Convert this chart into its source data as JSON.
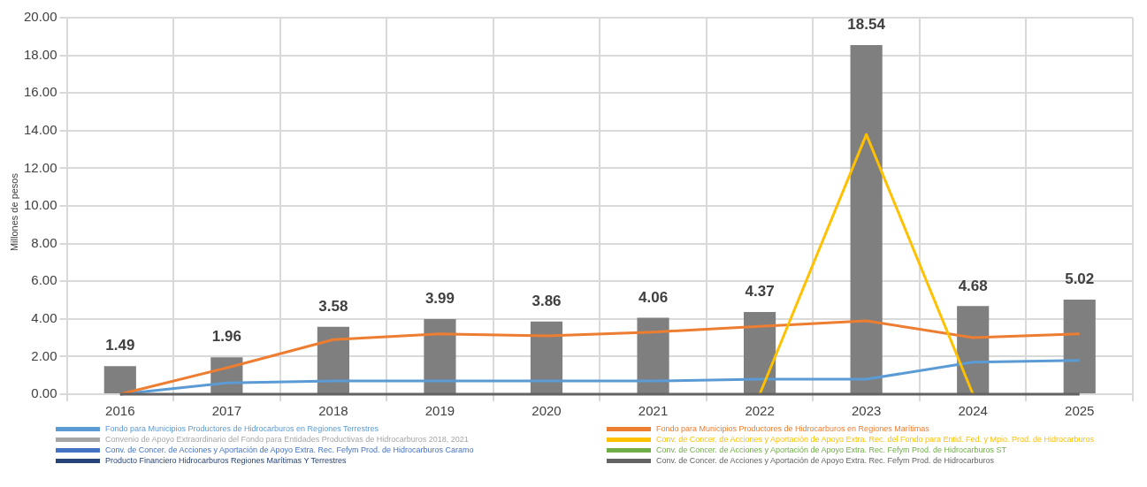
{
  "chart_data": {
    "type": "bar",
    "ylabel": "Millones de pesos",
    "categories": [
      "2016",
      "2017",
      "2018",
      "2019",
      "2020",
      "2021",
      "2022",
      "2023",
      "2024",
      "2025"
    ],
    "ylim": [
      0,
      20
    ],
    "yticks": [
      {
        "value": 0,
        "label": "0.00"
      },
      {
        "value": 2,
        "label": "2.00"
      },
      {
        "value": 4,
        "label": "4.00"
      },
      {
        "value": 6,
        "label": "6.00"
      },
      {
        "value": 8,
        "label": "8.00"
      },
      {
        "value": 10,
        "label": "10.00"
      },
      {
        "value": 12,
        "label": "12.00"
      },
      {
        "value": 14,
        "label": "14.00"
      },
      {
        "value": 16,
        "label": "16.00"
      },
      {
        "value": 18,
        "label": "18.00"
      },
      {
        "value": 20,
        "label": "20.00"
      }
    ],
    "grid": true,
    "legend": "bottom",
    "series": [
      {
        "color": "#7f7f7f",
        "values": [
          1.49,
          1.96,
          3.58,
          3.99,
          3.86,
          4.06,
          4.37,
          18.54,
          4.68,
          5.02
        ],
        "value_labels": [
          "1.49",
          "1.96",
          "3.58",
          "3.99",
          "3.86",
          "4.06",
          "4.37",
          "18.54",
          "4.68",
          "5.02"
        ]
      },
      {
        "type": "line",
        "name": "Fondo para Municipios Productores de Hidrocarburos en Regiones Terrestres",
        "color": "#5b9bd5",
        "values": [
          0,
          0.6,
          0.7,
          0.7,
          0.7,
          0.7,
          0.8,
          0.8,
          1.7,
          1.8
        ]
      },
      {
        "type": "line",
        "name": "Fondo para Municipios Productores de Hidrocarburos en Regiones Marítimas",
        "color": "#ed7d31",
        "values": [
          0,
          1.4,
          2.9,
          3.2,
          3.1,
          3.3,
          3.6,
          3.9,
          3,
          3.2
        ]
      },
      {
        "type": "line",
        "name": "Convenio de Apoyo Extraordinario del Fondo para Entidades Productivas de Hidrocarburos 2018, 2021",
        "color": "#a5a5a5",
        "values": [
          null,
          null,
          null,
          null,
          null,
          null,
          null,
          null,
          null,
          null
        ]
      },
      {
        "type": "line",
        "name": "Conv. de Concer. de Acciones y Aportación de Apoyo Extra. Rec. del Fondo para Entid. Fed. y Mpio. Prod. de Hidrocarburos",
        "color": "#ffc000",
        "values": [
          null,
          null,
          null,
          null,
          null,
          null,
          0,
          13.8,
          0,
          null
        ]
      },
      {
        "type": "line",
        "name": "Conv. de Concer. de Acciones y Aportación de Apoyo Extra. Rec. Fefym Prod. de Hidrocarburos Caramo",
        "color": "#4472c4",
        "values": [
          null,
          null,
          null,
          null,
          null,
          null,
          null,
          null,
          null,
          null
        ]
      },
      {
        "type": "line",
        "name": "Conv. de Concer. de Acciones y Aportación de Apoyo Extra. Rec. Fefym Prod. de Hidrocarburos ST",
        "color": "#70ad47",
        "values": [
          null,
          null,
          null,
          null,
          null,
          null,
          null,
          null,
          null,
          null
        ]
      },
      {
        "type": "line",
        "name": "Producto Financiero Hidrocarburos Regiones Marítimas Y Terrestres",
        "color": "#264478",
        "values": [
          null,
          null,
          null,
          null,
          null,
          null,
          null,
          null,
          null,
          null
        ]
      },
      {
        "type": "line",
        "name": "Conv. de Concer. de Acciones y Aportación de Apoyo Extra. Rec. Fefym Prod. de Hidrocarburos",
        "color": "#636363",
        "values": [
          0,
          0,
          0,
          0,
          0,
          0,
          0,
          0,
          0,
          0
        ]
      }
    ]
  }
}
